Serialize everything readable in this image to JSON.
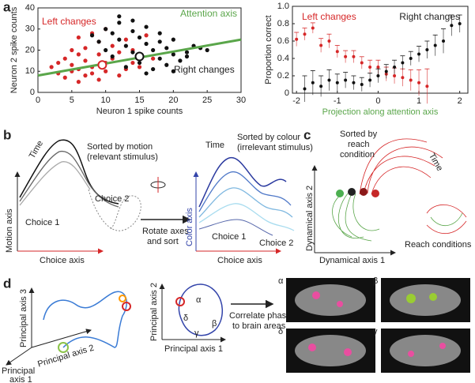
{
  "chart_data": [
    {
      "type": "scatter",
      "xlabel": "Neuron 1 spike counts",
      "ylabel": "Neuron 2 spike counts",
      "xlim": [
        0,
        30
      ],
      "xticks": [
        0,
        5,
        10,
        15,
        20,
        25,
        30
      ],
      "ylim": [
        0,
        40
      ],
      "yticks": [
        0,
        10,
        20,
        30,
        40
      ],
      "series": [
        {
          "name": "Left changes",
          "color": "#d62728",
          "x": [
            2,
            3,
            3,
            4,
            4,
            5,
            5,
            5,
            6,
            6,
            6,
            7,
            7,
            7,
            8,
            8,
            8,
            9,
            9,
            9,
            10,
            10,
            11,
            11,
            12,
            12,
            13,
            13,
            14,
            14,
            15,
            16,
            17,
            10,
            6
          ],
          "values": [
            12,
            9,
            14,
            7,
            16,
            10,
            13,
            20,
            5,
            11,
            26,
            8,
            15,
            21,
            9,
            12,
            28,
            6,
            18,
            24,
            10,
            14,
            16,
            22,
            8,
            19,
            11,
            25,
            14,
            20,
            12,
            27,
            16,
            30,
            18
          ]
        },
        {
          "name": "Right changes",
          "color": "#111111",
          "x": [
            8,
            9,
            10,
            10,
            11,
            11,
            12,
            12,
            13,
            13,
            14,
            14,
            15,
            15,
            16,
            16,
            17,
            17,
            18,
            18,
            19,
            19,
            20,
            20,
            21,
            22,
            23,
            24,
            25,
            12,
            14,
            16,
            18,
            20,
            22
          ],
          "values": [
            27,
            24,
            30,
            20,
            28,
            17,
            25,
            33,
            22,
            12,
            29,
            19,
            26,
            14,
            23,
            31,
            20,
            11,
            24,
            16,
            21,
            13,
            18,
            25,
            15,
            19,
            22,
            21,
            20,
            36,
            34,
            9,
            28,
            10,
            17
          ]
        }
      ],
      "means": [
        {
          "x": 9.5,
          "y": 13,
          "color": "#d62728"
        },
        {
          "x": 15,
          "y": 17,
          "color": "#111111"
        }
      ],
      "axis_line": {
        "name": "Attention axis",
        "color": "#5aa64a",
        "x": [
          0,
          30
        ],
        "y": [
          8,
          25
        ]
      }
    },
    {
      "type": "errorline",
      "xlabel": "Projection along attention axis",
      "ylabel": "Proportion correct",
      "xlim": [
        -2.1,
        2.2
      ],
      "xticks": [
        -2,
        -1,
        0,
        1,
        2
      ],
      "ylim": [
        0,
        1
      ],
      "yticks": [
        0,
        0.2,
        0.4,
        0.6,
        0.8,
        {
          "value": 1,
          "label": "1.0"
        }
      ],
      "series": [
        {
          "name": "Left changes",
          "color": "#d62728",
          "x": [
            -2,
            -1.8,
            -1.6,
            -1.4,
            -1.2,
            -1,
            -0.8,
            -0.6,
            -0.4,
            -0.2,
            0,
            0.2,
            0.4,
            0.6,
            0.8,
            1,
            1.2
          ],
          "values": [
            0.62,
            0.68,
            0.75,
            0.55,
            0.6,
            0.48,
            0.42,
            0.42,
            0.35,
            0.3,
            0.3,
            0.22,
            0.2,
            0.18,
            0.15,
            0.12,
            0.08
          ],
          "errors": [
            0.08,
            0.07,
            0.06,
            0.08,
            0.08,
            0.07,
            0.07,
            0.07,
            0.07,
            0.08,
            0.08,
            0.08,
            0.09,
            0.1,
            0.12,
            0.15,
            0.2
          ]
        },
        {
          "name": "Right changes",
          "color": "#111111",
          "x": [
            -1.8,
            -1.6,
            -1.4,
            -1.2,
            -1,
            -0.8,
            -0.6,
            -0.4,
            -0.2,
            0,
            0.2,
            0.4,
            0.6,
            0.8,
            1,
            1.2,
            1.4,
            1.6,
            1.8,
            2
          ],
          "values": [
            0.05,
            0.12,
            0.08,
            0.15,
            0.12,
            0.15,
            0.12,
            0.1,
            0.15,
            0.2,
            0.25,
            0.3,
            0.35,
            0.4,
            0.45,
            0.5,
            0.55,
            0.6,
            0.78,
            0.8
          ],
          "errors": [
            0.15,
            0.14,
            0.12,
            0.12,
            0.1,
            0.09,
            0.08,
            0.08,
            0.08,
            0.08,
            0.08,
            0.08,
            0.08,
            0.08,
            0.09,
            0.1,
            0.12,
            0.14,
            0.12,
            0.1
          ]
        }
      ]
    }
  ],
  "panel_labels": [
    "a",
    "b",
    "c",
    "d"
  ],
  "b": {
    "left_title": [
      "Sorted by motion",
      "(relevant stimulus)"
    ],
    "time_left": "Time",
    "choice2_left": "Choice 2",
    "choice1_left": "Choice 1",
    "motion_axis": "Motion axis",
    "choice_axis_left": "Choice axis",
    "rotate": [
      "Rotate axes",
      "and sort"
    ],
    "right_title": [
      "Sorted by colour",
      "(irrelevant stimulus)"
    ],
    "time_right": "Time",
    "choice1_right": "Choice 1",
    "choice2_right": "Choice 2",
    "color_axis": "Color axis",
    "choice_axis_right": "Choice axis"
  },
  "c": {
    "title": [
      "Sorted by",
      "reach",
      "condition"
    ],
    "time": "Time",
    "axis2": "Dynamical axis 2",
    "axis1": "Dynamical axis 1",
    "inset": "Reach conditions"
  },
  "d": {
    "axis3": "Principal axis 3",
    "axis2_3d": "Principal axis 2",
    "axis1_3d": [
      "Principal",
      "axis 1"
    ],
    "axis2": "Principal axis 2",
    "axis1": "Principal axis 1",
    "phases": [
      "α",
      "δ",
      "γ",
      "β"
    ],
    "correlate": [
      "Correlate phases",
      "to brain areas"
    ],
    "images": [
      "α",
      "β",
      "δ",
      "γ"
    ]
  }
}
